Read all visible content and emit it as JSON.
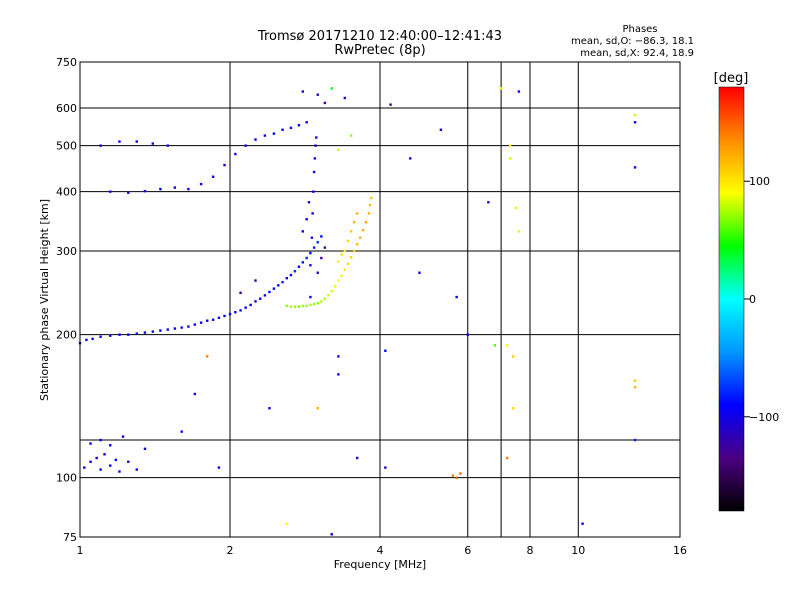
{
  "chart_data": {
    "type": "scatter",
    "title": "Tromsø 20171210 12:40:00–12:41:43",
    "subtitle": "RwPretec (8p)",
    "xlabel": "Frequency [MHz]",
    "ylabel": "Stationary phase Virtual Height [km]",
    "x_scale": "log2",
    "y_scale": "log",
    "xlim": [
      1,
      16
    ],
    "ylim": [
      75,
      750
    ],
    "x_ticks": [
      "1",
      "2",
      "4",
      "6",
      "8",
      "10",
      "16"
    ],
    "x_tick_values": [
      1,
      2,
      4,
      6,
      8,
      10,
      16
    ],
    "x_grid": [
      1,
      2,
      4,
      6,
      7,
      8,
      10,
      16
    ],
    "y_ticks": [
      "75",
      "100",
      "200",
      "300",
      "400",
      "500",
      "600",
      "750"
    ],
    "y_tick_values": [
      75,
      100,
      200,
      300,
      400,
      500,
      600,
      750
    ],
    "y_grid": [
      100,
      120,
      200,
      300,
      400,
      500,
      600
    ],
    "grid": true,
    "stats": {
      "heading": "Phases",
      "line_o": "mean, sd,O: −86.3, 18.1",
      "line_x": "mean, sd,X:  92.4, 18.9"
    },
    "colorbar": {
      "label": "[deg]",
      "range": [
        -180,
        180
      ],
      "ticks": [
        "100",
        "0",
        "−100"
      ],
      "tick_values": [
        100,
        0,
        -100
      ],
      "colors": [
        "#000000",
        "#4b0082",
        "#0000ff",
        "#0096ff",
        "#00ffff",
        "#00ff00",
        "#ffff00",
        "#ff8c00",
        "#ff0000"
      ]
    },
    "series": [
      {
        "values": [
          [
            1.0,
            192,
            -100
          ],
          [
            1.03,
            195,
            -90
          ],
          [
            1.06,
            196,
            -105
          ],
          [
            1.1,
            198,
            -95
          ],
          [
            1.15,
            199,
            -100
          ],
          [
            1.2,
            200,
            -92
          ],
          [
            1.25,
            200,
            -98
          ],
          [
            1.3,
            201,
            -88
          ],
          [
            1.35,
            202,
            -104
          ],
          [
            1.4,
            203,
            -96
          ],
          [
            1.45,
            204,
            -90
          ],
          [
            1.5,
            205,
            -100
          ],
          [
            1.55,
            206,
            -94
          ],
          [
            1.6,
            207,
            -86
          ],
          [
            1.65,
            208,
            -102
          ],
          [
            1.7,
            210,
            -95
          ],
          [
            1.75,
            212,
            -90
          ],
          [
            1.8,
            214,
            -100
          ],
          [
            1.85,
            215,
            -92
          ],
          [
            1.9,
            217,
            -96
          ],
          [
            1.95,
            219,
            -88
          ],
          [
            2.0,
            221,
            -100
          ],
          [
            2.05,
            223,
            -93
          ],
          [
            2.1,
            225,
            -85
          ],
          [
            2.15,
            228,
            -99
          ],
          [
            2.2,
            231,
            -91
          ],
          [
            2.25,
            235,
            -87
          ],
          [
            2.3,
            238,
            -97
          ],
          [
            2.35,
            242,
            -90
          ],
          [
            2.4,
            246,
            -84
          ],
          [
            2.45,
            250,
            -94
          ],
          [
            2.5,
            254,
            -88
          ],
          [
            2.55,
            258,
            -80
          ],
          [
            2.6,
            263,
            -92
          ],
          [
            2.65,
            267,
            -86
          ],
          [
            2.7,
            272,
            -78
          ],
          [
            2.75,
            278,
            -90
          ],
          [
            2.8,
            284,
            -84
          ],
          [
            2.85,
            290,
            -80
          ],
          [
            2.9,
            297,
            -88
          ],
          [
            2.95,
            305,
            -82
          ],
          [
            3.0,
            313,
            -76
          ],
          [
            3.05,
            322,
            -86
          ]
        ]
      },
      {
        "values": [
          [
            2.6,
            230,
            70
          ],
          [
            2.65,
            229,
            75
          ],
          [
            2.7,
            229,
            72
          ],
          [
            2.75,
            229,
            68
          ],
          [
            2.8,
            230,
            74
          ],
          [
            2.85,
            230,
            70
          ],
          [
            2.9,
            231,
            76
          ],
          [
            2.95,
            232,
            72
          ],
          [
            3.0,
            233,
            70
          ],
          [
            3.05,
            235,
            78
          ],
          [
            3.1,
            238,
            74
          ],
          [
            3.15,
            242,
            80
          ],
          [
            3.2,
            247,
            82
          ],
          [
            3.25,
            253,
            86
          ],
          [
            3.3,
            260,
            90
          ],
          [
            3.35,
            266,
            94
          ],
          [
            3.4,
            274,
            98
          ],
          [
            3.45,
            282,
            104
          ],
          [
            3.5,
            291,
            108
          ],
          [
            3.55,
            300,
            112
          ],
          [
            3.6,
            310,
            116
          ],
          [
            3.65,
            320,
            118
          ],
          [
            3.7,
            332,
            122
          ],
          [
            3.75,
            345,
            126
          ],
          [
            3.8,
            360,
            120
          ],
          [
            3.82,
            375,
            115
          ],
          [
            3.84,
            388,
            110
          ],
          [
            3.4,
            300,
            100
          ],
          [
            3.45,
            315,
            106
          ],
          [
            3.5,
            330,
            112
          ],
          [
            3.55,
            345,
            116
          ],
          [
            3.6,
            360,
            118
          ],
          [
            3.3,
            285,
            96
          ],
          [
            3.35,
            295,
            100
          ]
        ]
      },
      {
        "values": [
          [
            2.9,
            240,
            -100
          ],
          [
            2.9,
            280,
            -110
          ],
          [
            2.92,
            320,
            -105
          ],
          [
            2.93,
            360,
            -108
          ],
          [
            2.94,
            400,
            -100
          ],
          [
            2.95,
            440,
            -112
          ],
          [
            2.96,
            470,
            -106
          ],
          [
            2.97,
            500,
            -104
          ],
          [
            2.98,
            520,
            -110
          ],
          [
            2.85,
            350,
            -95
          ],
          [
            2.88,
            380,
            -102
          ],
          [
            3.0,
            270,
            -120
          ],
          [
            3.05,
            290,
            -125
          ],
          [
            3.1,
            305,
            -130
          ],
          [
            2.8,
            330,
            -98
          ]
        ]
      },
      {
        "values": [
          [
            1.15,
            400,
            -100
          ],
          [
            1.25,
            398,
            -95
          ],
          [
            1.35,
            401,
            -98
          ],
          [
            1.45,
            405,
            -92
          ],
          [
            1.55,
            408,
            -100
          ],
          [
            1.65,
            405,
            -94
          ],
          [
            1.75,
            415,
            -98
          ],
          [
            1.85,
            430,
            -90
          ],
          [
            1.95,
            455,
            -96
          ],
          [
            2.05,
            480,
            -100
          ],
          [
            2.15,
            500,
            -94
          ],
          [
            2.25,
            515,
            -90
          ],
          [
            2.35,
            525,
            -96
          ],
          [
            2.45,
            530,
            -88
          ],
          [
            2.55,
            540,
            -92
          ],
          [
            2.65,
            545,
            -86
          ],
          [
            2.75,
            552,
            -90
          ],
          [
            2.85,
            560,
            -95
          ],
          [
            1.3,
            510,
            -100
          ],
          [
            1.4,
            505,
            -104
          ],
          [
            1.5,
            500,
            -98
          ],
          [
            1.1,
            500,
            -96
          ],
          [
            1.2,
            510,
            -92
          ]
        ]
      },
      {
        "values": [
          [
            1.02,
            105,
            -105
          ],
          [
            1.05,
            108,
            -95
          ],
          [
            1.08,
            110,
            -100
          ],
          [
            1.1,
            104,
            -90
          ],
          [
            1.12,
            112,
            -98
          ],
          [
            1.15,
            106,
            -102
          ],
          [
            1.18,
            109,
            -94
          ],
          [
            1.2,
            103,
            -100
          ],
          [
            1.25,
            108,
            -96
          ],
          [
            1.3,
            104,
            -92
          ],
          [
            1.05,
            118,
            -100
          ],
          [
            1.1,
            120,
            -96
          ],
          [
            1.15,
            117,
            -88
          ],
          [
            1.22,
            122,
            -98
          ],
          [
            1.35,
            115,
            -94
          ]
        ]
      },
      {
        "values": [
          [
            3.2,
            660,
            40
          ],
          [
            3.0,
            640,
            -120
          ],
          [
            3.1,
            615,
            -130
          ],
          [
            3.4,
            630,
            -110
          ],
          [
            2.8,
            650,
            -100
          ],
          [
            3.5,
            525,
            70
          ],
          [
            3.3,
            490,
            80
          ],
          [
            4.2,
            610,
            -120
          ],
          [
            4.6,
            470,
            -115
          ],
          [
            5.3,
            540,
            -110
          ],
          [
            6.6,
            380,
            -100
          ],
          [
            7.0,
            660,
            90
          ],
          [
            7.6,
            650,
            -90
          ],
          [
            7.3,
            500,
            90
          ],
          [
            7.3,
            470,
            80
          ],
          [
            7.6,
            330,
            85
          ],
          [
            7.2,
            190,
            95
          ],
          [
            7.4,
            180,
            110
          ],
          [
            6.8,
            190,
            60
          ],
          [
            6.0,
            200,
            -100
          ],
          [
            5.7,
            240,
            -95
          ],
          [
            4.8,
            270,
            -100
          ],
          [
            7.5,
            370,
            85
          ],
          [
            7.4,
            140,
            105
          ],
          [
            7.2,
            110,
            140
          ],
          [
            5.7,
            100,
            150
          ],
          [
            5.8,
            102,
            145
          ],
          [
            5.6,
            101,
            140
          ],
          [
            4.1,
            105,
            -105
          ],
          [
            3.6,
            110,
            -100
          ],
          [
            3.0,
            140,
            120
          ],
          [
            2.4,
            140,
            -100
          ],
          [
            1.8,
            180,
            140
          ],
          [
            1.9,
            105,
            -100
          ],
          [
            1.6,
            125,
            -90
          ],
          [
            1.7,
            150,
            -100
          ],
          [
            13.0,
            580,
            80
          ],
          [
            13.0,
            560,
            -90
          ],
          [
            13.0,
            450,
            -100
          ],
          [
            13.0,
            160,
            110
          ],
          [
            13.0,
            155,
            120
          ],
          [
            13.0,
            120,
            -80
          ],
          [
            10.2,
            80,
            -95
          ],
          [
            2.1,
            245,
            -130
          ],
          [
            2.25,
            260,
            -120
          ],
          [
            3.3,
            165,
            -100
          ],
          [
            3.3,
            180,
            -105
          ],
          [
            4.1,
            185,
            -95
          ],
          [
            3.2,
            76,
            -100
          ],
          [
            2.6,
            80,
            90
          ]
        ]
      }
    ]
  }
}
